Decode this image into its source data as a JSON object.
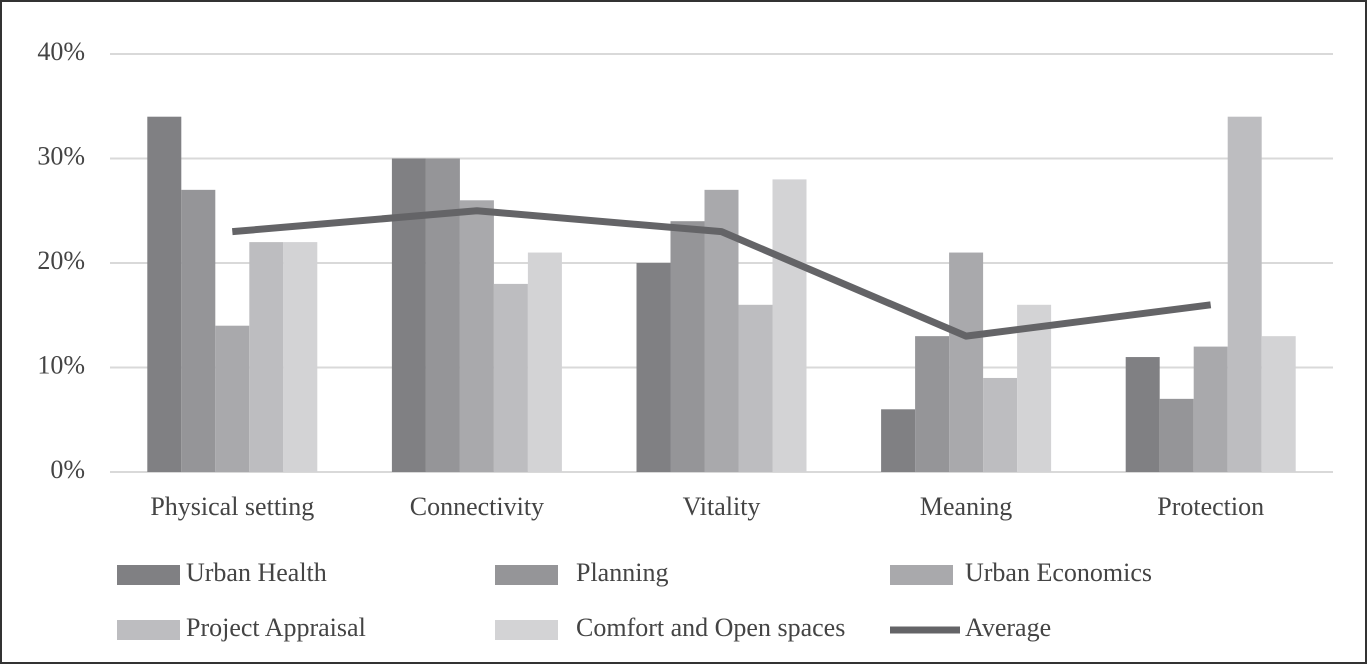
{
  "chart_data": {
    "type": "bar",
    "categories": [
      "Physical setting",
      "Connectivity",
      "Vitality",
      "Meaning",
      "Protection"
    ],
    "series": [
      {
        "name": "Urban Health",
        "color": "#808083",
        "values": [
          34,
          30,
          20,
          6,
          11
        ]
      },
      {
        "name": "Planning",
        "color": "#959598",
        "values": [
          27,
          30,
          24,
          13,
          7
        ]
      },
      {
        "name": "Urban Economics",
        "color": "#a9a9ac",
        "values": [
          14,
          26,
          27,
          21,
          12
        ]
      },
      {
        "name": "Project Appraisal",
        "color": "#bdbdc0",
        "values": [
          22,
          18,
          16,
          9,
          34
        ]
      },
      {
        "name": "Comfort and Open spaces",
        "color": "#d3d3d5",
        "values": [
          22,
          21,
          28,
          16,
          13
        ]
      },
      {
        "name": "Average",
        "type": "line",
        "color": "#646467",
        "values": [
          23,
          25,
          23,
          13,
          16
        ]
      }
    ],
    "ylim": [
      0,
      40
    ],
    "yticks": [
      {
        "value": 0,
        "label": "0%"
      },
      {
        "value": 10,
        "label": "10%"
      },
      {
        "value": 20,
        "label": "20%"
      },
      {
        "value": 30,
        "label": "30%"
      },
      {
        "value": 40,
        "label": "40%"
      }
    ],
    "grid": true,
    "legend": "bottom"
  }
}
